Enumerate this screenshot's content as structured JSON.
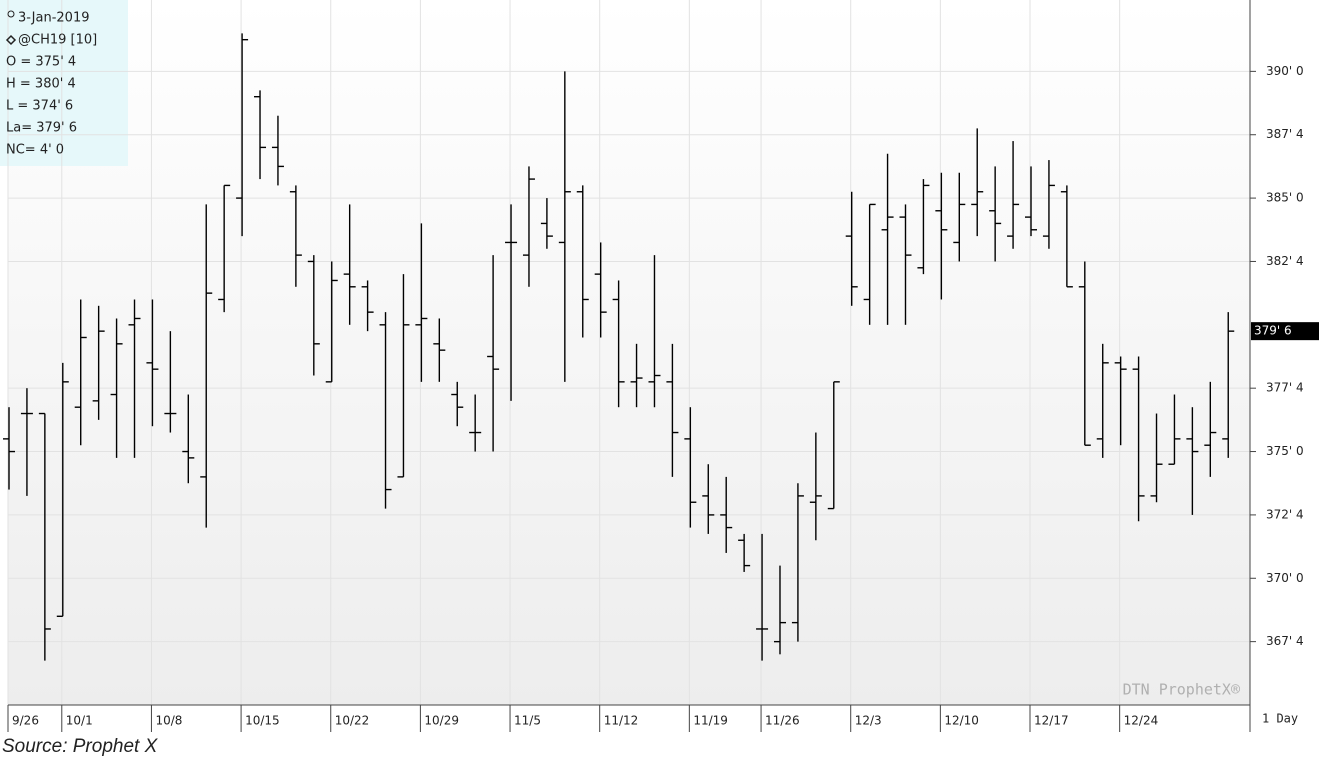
{
  "chart_data": {
    "type": "ohlc",
    "info": [
      "3-Jan-2019",
      "@CH19 [10]",
      "O = 375' 4",
      "H = 380' 4",
      "L = 374' 6",
      "La= 379' 6",
      "NC= 4' 0"
    ],
    "watermark": "DTN ProphetX®",
    "period": "1 Day",
    "source": "Source: Prophet X",
    "last_price": {
      "value": 379.75,
      "label": "379' 6"
    },
    "ylim": [
      365,
      392.5
    ],
    "yticks": [
      {
        "value": 367.5,
        "label": "367' 4"
      },
      {
        "value": 370,
        "label": "370' 0"
      },
      {
        "value": 372.5,
        "label": "372' 4"
      },
      {
        "value": 375,
        "label": "375' 0"
      },
      {
        "value": 377.5,
        "label": "377' 4"
      },
      {
        "value": 382.5,
        "label": "382' 4"
      },
      {
        "value": 385,
        "label": "385' 0"
      },
      {
        "value": 387.5,
        "label": "387' 4"
      },
      {
        "value": 390,
        "label": "390' 0"
      }
    ],
    "grid": true,
    "color": "#000000",
    "categories": [
      "9/26",
      null,
      null,
      "10/1",
      null,
      null,
      null,
      null,
      "10/8",
      null,
      null,
      null,
      null,
      "10/15",
      null,
      null,
      null,
      null,
      "10/22",
      null,
      null,
      null,
      null,
      "10/29",
      null,
      null,
      null,
      null,
      "11/5",
      null,
      null,
      null,
      null,
      "11/12",
      null,
      null,
      null,
      null,
      "11/19",
      null,
      null,
      null,
      "11/26",
      null,
      null,
      null,
      null,
      "12/3",
      null,
      null,
      null,
      null,
      "12/10",
      null,
      null,
      null,
      null,
      "12/17",
      null,
      null,
      null,
      null,
      "12/24",
      null,
      null,
      null,
      null,
      null,
      null
    ],
    "open": [
      375.5,
      376.5,
      376.5,
      368.5,
      376.75,
      377,
      377.25,
      380,
      378.5,
      376.5,
      375,
      374,
      381,
      385,
      389,
      387,
      385.25,
      382.5,
      377.75,
      382,
      381.5,
      380,
      374,
      380,
      379.25,
      377.25,
      375.75,
      378.75,
      383.25,
      382.75,
      384,
      383.25,
      385.25,
      382,
      381,
      377.75,
      377.75,
      377.75,
      375.5,
      373.25,
      372.5,
      371.5,
      368,
      367.5,
      368.25,
      373,
      372.75,
      383.5,
      381,
      383.75,
      384.25,
      382.25,
      384.5,
      383.25,
      384.75,
      384.5,
      383.5,
      384.25,
      383.5,
      385.25,
      381.5,
      375.5,
      378.5,
      378.25,
      373.25,
      374.5,
      375.5,
      375.25,
      375.5
    ],
    "high": [
      376.75,
      377.5,
      376.5,
      378.5,
      381,
      380.75,
      380.25,
      381,
      381,
      379.75,
      377.25,
      384.75,
      385.5,
      391.5,
      389.25,
      388.25,
      385.5,
      382.75,
      382.5,
      384.75,
      381.75,
      380.5,
      382,
      384,
      380.25,
      377.75,
      377.25,
      382.75,
      384.75,
      386.25,
      385,
      390,
      385.5,
      383.25,
      381.75,
      379.25,
      382.75,
      379.25,
      376.75,
      374.5,
      374,
      371.75,
      371.75,
      370.5,
      373.75,
      375.75,
      377.75,
      385.25,
      384.75,
      386.75,
      384.75,
      385.75,
      386,
      386,
      387.75,
      386.25,
      387.25,
      386.25,
      386.5,
      385.5,
      382.5,
      379.25,
      378.75,
      378.75,
      376.5,
      377.25,
      376.75,
      377.75,
      380.5
    ],
    "low": [
      373.5,
      373.25,
      366.75,
      368.5,
      375.25,
      376.25,
      374.75,
      374.75,
      376,
      375.75,
      373.75,
      372,
      380.5,
      383.5,
      385.75,
      385.5,
      381.5,
      378,
      377.75,
      380,
      379.75,
      372.75,
      374,
      377.75,
      377.75,
      376,
      375,
      375,
      377,
      381.5,
      383,
      377.75,
      379.5,
      379.5,
      376.75,
      376.75,
      376.75,
      374,
      372,
      371.75,
      371,
      370.25,
      366.75,
      367,
      367.5,
      371.5,
      372.75,
      380.75,
      380,
      380,
      380,
      382,
      381,
      382.5,
      383.5,
      382.5,
      383,
      383.5,
      383,
      381.5,
      375.25,
      374.75,
      375.25,
      372.25,
      373,
      374.5,
      372.5,
      374,
      374.75
    ],
    "close": [
      375,
      376.5,
      368,
      377.75,
      379.5,
      379.75,
      379.25,
      380.25,
      378.25,
      376.5,
      374.75,
      381.25,
      385.5,
      391.25,
      387,
      386.25,
      382.75,
      379.25,
      381.75,
      381.5,
      380.5,
      373.5,
      380,
      380.25,
      379,
      376.75,
      375.75,
      378.25,
      383.25,
      385.75,
      383.5,
      385.25,
      381,
      380.5,
      377.75,
      377.9,
      378,
      375.75,
      373,
      372.5,
      372,
      370.5,
      368,
      368.25,
      373.25,
      373.25,
      377.75,
      381.5,
      384.75,
      384.25,
      382.75,
      385.5,
      383.75,
      384.75,
      385.25,
      384,
      384.75,
      383.75,
      385.5,
      381.5,
      375.25,
      378.5,
      378.25,
      373.25,
      374.5,
      375.5,
      375,
      375.75,
      379.75
    ]
  }
}
